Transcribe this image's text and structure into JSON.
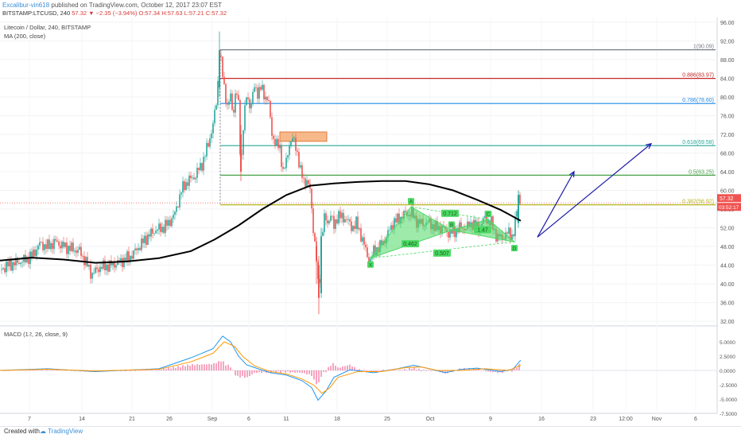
{
  "header": {
    "author": "Excalibur-vin618",
    "published": "published on TradingView.com, October 12, 2017 23:07 EST",
    "symbol": "BITSTAMP:LTCUSD, 240",
    "last": "57.32",
    "change": "−2.35 (−3.94%)",
    "open": "O:57.34",
    "high": "H:57.63",
    "low": "L:57.21",
    "close": "C:57.32"
  },
  "legend": {
    "title": "Litecoin / Dollar, 240, BITSTAMP",
    "ma": "MA (200, close)",
    "macd": "MACD (12, 26, close, 9)"
  },
  "price_tag": {
    "value": "57.32",
    "countdown": "03:52:17"
  },
  "footer": {
    "created": "Created with",
    "brand": "TradingView"
  },
  "colors": {
    "up": "#26a69a",
    "down": "#ef5350",
    "pattern": "#4cd964",
    "arrow": "#1a1aa8",
    "ma": "#000000"
  },
  "chart_data": [
    {
      "type": "candlestick",
      "title": "Litecoin / Dollar, 240, BITSTAMP",
      "ylim": [
        31,
        97
      ],
      "y_ticks": [
        32,
        36,
        40,
        44,
        48,
        52,
        56,
        60,
        64,
        68,
        72,
        76,
        80,
        84,
        88,
        92,
        96
      ],
      "x_ticks": [
        "7",
        "14",
        "21",
        "26",
        "Sep",
        "6",
        "11",
        "18",
        "25",
        "Oct",
        "9",
        "16",
        "23",
        "12:00",
        "Nov",
        "6"
      ],
      "close_path": [
        [
          0,
          43
        ],
        [
          10,
          44
        ],
        [
          20,
          44.5
        ],
        [
          30,
          45
        ],
        [
          40,
          46
        ],
        [
          50,
          48.5
        ],
        [
          60,
          48
        ],
        [
          70,
          49
        ],
        [
          80,
          48
        ],
        [
          90,
          47.5
        ],
        [
          100,
          47
        ],
        [
          110,
          44
        ],
        [
          115,
          42
        ],
        [
          125,
          43.5
        ],
        [
          140,
          44
        ],
        [
          155,
          45
        ],
        [
          165,
          46
        ],
        [
          175,
          48
        ],
        [
          185,
          50
        ],
        [
          195,
          51.5
        ],
        [
          205,
          52
        ],
        [
          212,
          53
        ],
        [
          220,
          55
        ],
        [
          228,
          60
        ],
        [
          236,
          62
        ],
        [
          245,
          63
        ],
        [
          255,
          66
        ],
        [
          262,
          70
        ],
        [
          268,
          74
        ],
        [
          273,
          80
        ],
        [
          276,
          90
        ],
        [
          279,
          86
        ],
        [
          282,
          82
        ],
        [
          286,
          78
        ],
        [
          290,
          80
        ],
        [
          293,
          76
        ],
        [
          297,
          82
        ],
        [
          300,
          78
        ],
        [
          303,
          64
        ],
        [
          306,
          74
        ],
        [
          310,
          80
        ],
        [
          315,
          78
        ],
        [
          320,
          82
        ],
        [
          324,
          81
        ],
        [
          328,
          82
        ],
        [
          333,
          80
        ],
        [
          337,
          80
        ],
        [
          342,
          72
        ],
        [
          347,
          70
        ],
        [
          352,
          69
        ],
        [
          356,
          64
        ],
        [
          360,
          66
        ],
        [
          364,
          70
        ],
        [
          368,
          71
        ],
        [
          373,
          69
        ],
        [
          378,
          64
        ],
        [
          382,
          62
        ],
        [
          386,
          62
        ],
        [
          390,
          60
        ],
        [
          394,
          52
        ],
        [
          398,
          45
        ],
        [
          401,
          37
        ],
        [
          404,
          50
        ],
        [
          408,
          54
        ],
        [
          412,
          53
        ],
        [
          416,
          55
        ],
        [
          420,
          52
        ],
        [
          425,
          55
        ],
        [
          430,
          54
        ],
        [
          436,
          54
        ],
        [
          442,
          52
        ],
        [
          448,
          53
        ],
        [
          455,
          50
        ],
        [
          462,
          46
        ],
        [
          466,
          45
        ],
        [
          470,
          47
        ],
        [
          478,
          48
        ],
        [
          486,
          50
        ],
        [
          494,
          53
        ],
        [
          502,
          54
        ],
        [
          510,
          55
        ],
        [
          518,
          55
        ],
        [
          526,
          53
        ],
        [
          532,
          53
        ],
        [
          540,
          53
        ],
        [
          548,
          52
        ],
        [
          556,
          52
        ],
        [
          563,
          51
        ],
        [
          570,
          51
        ],
        [
          578,
          52
        ],
        [
          586,
          52
        ],
        [
          594,
          53
        ],
        [
          602,
          52
        ],
        [
          610,
          54
        ],
        [
          618,
          53
        ],
        [
          625,
          50
        ],
        [
          632,
          50
        ],
        [
          640,
          51
        ],
        [
          645,
          50
        ],
        [
          648,
          53
        ],
        [
          652,
          59
        ],
        [
          655,
          57.32
        ]
      ],
      "candles": [
        {
          "x": 276,
          "o": 82,
          "h": 94,
          "l": 80,
          "c": 90
        },
        {
          "x": 303,
          "o": 72,
          "h": 74,
          "l": 62,
          "c": 64
        },
        {
          "x": 398,
          "o": 48,
          "h": 50,
          "l": 40,
          "c": 45
        },
        {
          "x": 401,
          "o": 44,
          "h": 46,
          "l": 33.5,
          "c": 37
        },
        {
          "x": 404,
          "o": 38,
          "h": 52,
          "l": 37,
          "c": 50
        },
        {
          "x": 652,
          "o": 53,
          "h": 60,
          "l": 52,
          "c": 59
        }
      ],
      "ma200": [
        [
          0,
          45
        ],
        [
          40,
          45.6
        ],
        [
          80,
          45.2
        ],
        [
          120,
          44.5
        ],
        [
          160,
          44.8
        ],
        [
          200,
          45.5
        ],
        [
          240,
          47
        ],
        [
          270,
          49.5
        ],
        [
          300,
          52.5
        ],
        [
          330,
          56
        ],
        [
          360,
          59
        ],
        [
          390,
          61
        ],
        [
          420,
          61.5
        ],
        [
          450,
          61.8
        ],
        [
          480,
          62
        ],
        [
          510,
          62
        ],
        [
          540,
          61.3
        ],
        [
          570,
          60
        ],
        [
          600,
          58
        ],
        [
          630,
          55.8
        ],
        [
          655,
          53.5
        ]
      ],
      "fib_levels": [
        {
          "label": "1(90.09)",
          "value": 90.09,
          "color": "#787b86"
        },
        {
          "label": "0.886(83.97)",
          "value": 83.97,
          "color": "#c62828"
        },
        {
          "label": "0.786(78.60)",
          "value": 78.6,
          "color": "#1e88e5"
        },
        {
          "label": "0.618(69.58)",
          "value": 69.58,
          "color": "#26a69a"
        },
        {
          "label": "0.5(63.25)",
          "value": 63.25,
          "color": "#43a047"
        },
        {
          "label": "0.382(56.92)",
          "value": 56.92,
          "color": "#b5b51a"
        }
      ],
      "pattern_points": [
        {
          "label": "X",
          "x": 466,
          "y": 45.5
        },
        {
          "label": "A",
          "x": 517,
          "y": 56.5
        },
        {
          "label": "B",
          "x": 568,
          "y": 51.5
        },
        {
          "label": "C",
          "x": 614,
          "y": 53.8
        },
        {
          "label": "D",
          "x": 647,
          "y": 49
        }
      ],
      "pattern_ratios": [
        {
          "label": "0.462",
          "x": 516,
          "y": 48.5
        },
        {
          "label": "0.712",
          "x": 566,
          "y": 55
        },
        {
          "label": "1.47",
          "x": 607,
          "y": 51.5
        },
        {
          "label": "0.507",
          "x": 556,
          "y": 46.5
        }
      ],
      "supply_zone": {
        "x0": 352,
        "x1": 411,
        "ytop": 72.5,
        "ybot": 70.5
      },
      "projection_arrows": [
        {
          "from": [
            676,
            50
          ],
          "to": [
            722,
            64
          ]
        },
        {
          "from": [
            676,
            50
          ],
          "to": [
            819,
            70
          ]
        }
      ]
    },
    {
      "type": "line",
      "title": "MACD (12, 26, close, 9)",
      "ylim": [
        -7.5,
        7.5
      ],
      "y_ticks": [
        5.0,
        2.5,
        0.0,
        -2.5,
        -5.0,
        -7.5
      ],
      "y_tick_labels": [
        "5.0000",
        "2.5000",
        "0.0000",
        "-2.5000",
        "-5.0000",
        "-7.5000"
      ],
      "series": [
        {
          "color": "#2196f3",
          "points": [
            [
              0,
              0
            ],
            [
              60,
              0.3
            ],
            [
              120,
              -0.2
            ],
            [
              200,
              0.3
            ],
            [
              240,
              2.2
            ],
            [
              268,
              3.8
            ],
            [
              280,
              6
            ],
            [
              290,
              5
            ],
            [
              300,
              2.5
            ],
            [
              310,
              1
            ],
            [
              320,
              0.5
            ],
            [
              340,
              -0.4
            ],
            [
              360,
              -0.8
            ],
            [
              380,
              -1.8
            ],
            [
              392,
              -3
            ],
            [
              400,
              -5.2
            ],
            [
              410,
              -3.6
            ],
            [
              420,
              -1.2
            ],
            [
              440,
              0.1
            ],
            [
              470,
              -0.4
            ],
            [
              500,
              0.3
            ],
            [
              520,
              0.9
            ],
            [
              540,
              0.3
            ],
            [
              560,
              -0.4
            ],
            [
              580,
              0.2
            ],
            [
              600,
              0.4
            ],
            [
              630,
              -0.2
            ],
            [
              645,
              0.2
            ],
            [
              655,
              1.8
            ]
          ]
        },
        {
          "color": "#ff9800",
          "points": [
            [
              0,
              0
            ],
            [
              60,
              0.2
            ],
            [
              120,
              -0.1
            ],
            [
              200,
              0.2
            ],
            [
              240,
              1.5
            ],
            [
              268,
              3
            ],
            [
              282,
              5
            ],
            [
              295,
              4.2
            ],
            [
              305,
              2.5
            ],
            [
              320,
              0.8
            ],
            [
              340,
              -0.2
            ],
            [
              360,
              -0.6
            ],
            [
              380,
              -1.5
            ],
            [
              395,
              -2.6
            ],
            [
              405,
              -4
            ],
            [
              415,
              -3
            ],
            [
              425,
              -1.2
            ],
            [
              450,
              -0.2
            ],
            [
              480,
              -0.2
            ],
            [
              510,
              0.5
            ],
            [
              530,
              0.6
            ],
            [
              550,
              0
            ],
            [
              580,
              0
            ],
            [
              610,
              0.3
            ],
            [
              640,
              0
            ],
            [
              655,
              0.9
            ]
          ]
        }
      ],
      "histogram_color": "#f48fb1"
    }
  ]
}
